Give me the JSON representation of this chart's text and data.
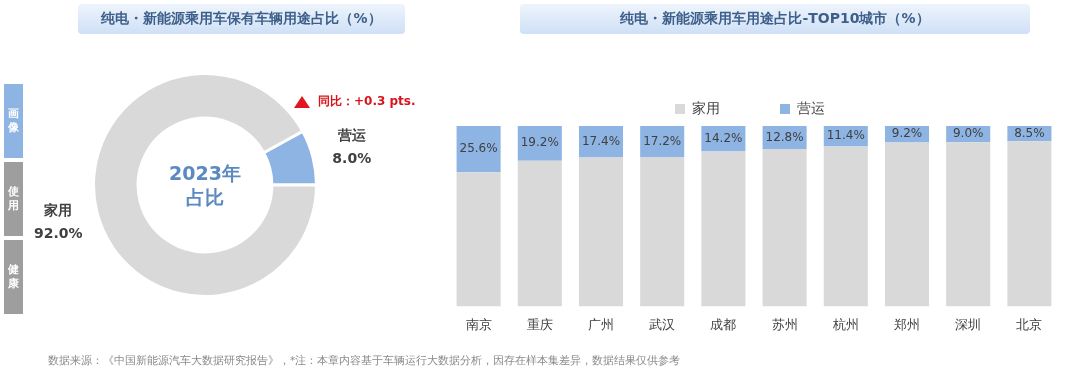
{
  "chart_data": [
    {
      "type": "donut",
      "title": "纯电・新能源乘用车保有车辆用途占比（%）",
      "categories": [
        "营运",
        "家用"
      ],
      "values": [
        8.0,
        92.0
      ],
      "colors": [
        "#8eb4e3",
        "#d9d9d9"
      ],
      "value_labels": [
        "8.0%",
        "92.0%"
      ],
      "annotations": [
        "2023年占比",
        "同比：+0.3 pts.",
        "画像",
        "使用",
        "健康",
        "数据来源：《中国新能源汽车大数据研究报告》，*注：本章内容基于车辆运行大数据分析，因存在样本集差异，数据结果仅供参考"
      ]
    },
    {
      "type": "bar",
      "title": "纯电・新能源乘用车用途占比-TOP10城市（%）",
      "stacked": true,
      "categories": [
        "南京",
        "重庆",
        "广州",
        "武汉",
        "成都",
        "苏州",
        "杭州",
        "郑州",
        "深圳",
        "北京"
      ],
      "series": [
        {
          "name": "家用",
          "color": "#d9d9d9",
          "values": [
            74.4,
            80.8,
            82.6,
            82.8,
            85.8,
            87.2,
            88.6,
            90.8,
            91.0,
            91.5
          ]
        },
        {
          "name": "营运",
          "color": "#8eb4e3",
          "values": [
            25.6,
            19.2,
            17.4,
            17.2,
            14.2,
            12.8,
            11.4,
            9.2,
            9.0,
            8.5
          ],
          "value_labels": [
            "25.6%",
            "19.2%",
            "17.4%",
            "17.2%",
            "14.2%",
            "12.8%",
            "11.4%",
            "9.2%",
            "9.0%",
            "8.5%"
          ]
        }
      ],
      "ylim": [
        0,
        100
      ],
      "tick_labels": "x",
      "grid": false,
      "legend": "top"
    }
  ]
}
